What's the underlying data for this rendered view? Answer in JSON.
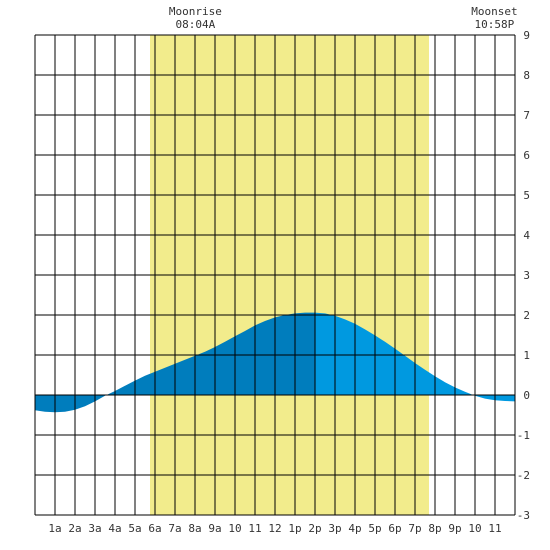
{
  "chart_data": {
    "type": "area",
    "title": "",
    "xlabel": "",
    "ylabel": "",
    "xlim": [
      0,
      24
    ],
    "ylim": [
      -3,
      9
    ],
    "grid": true,
    "x_tick_labels": [
      "1a",
      "2a",
      "3a",
      "4a",
      "5a",
      "6a",
      "7a",
      "8a",
      "9a",
      "10",
      "11",
      "12",
      "1p",
      "2p",
      "3p",
      "4p",
      "5p",
      "6p",
      "7p",
      "8p",
      "9p",
      "10",
      "11"
    ],
    "y_tick_labels": [
      "-3",
      "-2",
      "-1",
      "0",
      "1",
      "2",
      "3",
      "4",
      "5",
      "6",
      "7",
      "8",
      "9"
    ],
    "daylight": [
      5.75,
      19.7
    ],
    "annotations": [
      {
        "label": "Moonrise",
        "time": "08:04A",
        "x": 8.07
      },
      {
        "label": "Moonset",
        "time": "10:58P",
        "x": 22.97
      }
    ],
    "series": [
      {
        "x": [
          0,
          0.5,
          1,
          1.5,
          2,
          2.5,
          3,
          3.5,
          4,
          4.5,
          5,
          5.5,
          6,
          6.5,
          7,
          7.5,
          8,
          8.5,
          9,
          9.5,
          10,
          10.5,
          11,
          11.5,
          12,
          12.5,
          13,
          13.5,
          14,
          14.5,
          15,
          15.5,
          16,
          16.5,
          17,
          17.5,
          18,
          18.5,
          19,
          19.5,
          20,
          20.5,
          21,
          21.5,
          22,
          22.5,
          23,
          23.5,
          24
        ],
        "values": [
          -0.38,
          -0.42,
          -0.43,
          -0.42,
          -0.37,
          -0.28,
          -0.16,
          -0.02,
          0.1,
          0.23,
          0.36,
          0.48,
          0.58,
          0.68,
          0.78,
          0.88,
          0.98,
          1.08,
          1.2,
          1.33,
          1.47,
          1.6,
          1.74,
          1.85,
          1.94,
          2.0,
          2.04,
          2.06,
          2.06,
          2.04,
          1.98,
          1.89,
          1.78,
          1.64,
          1.49,
          1.33,
          1.16,
          0.98,
          0.8,
          0.63,
          0.47,
          0.32,
          0.19,
          0.08,
          -0.02,
          -0.09,
          -0.13,
          -0.15,
          -0.16
        ]
      }
    ],
    "colors": {
      "daylight": "#f2ec8c",
      "fill_before_peak": "#007dbd",
      "fill_after_peak": "#0099e0",
      "grid": "#000000"
    },
    "peak_x": 14
  }
}
